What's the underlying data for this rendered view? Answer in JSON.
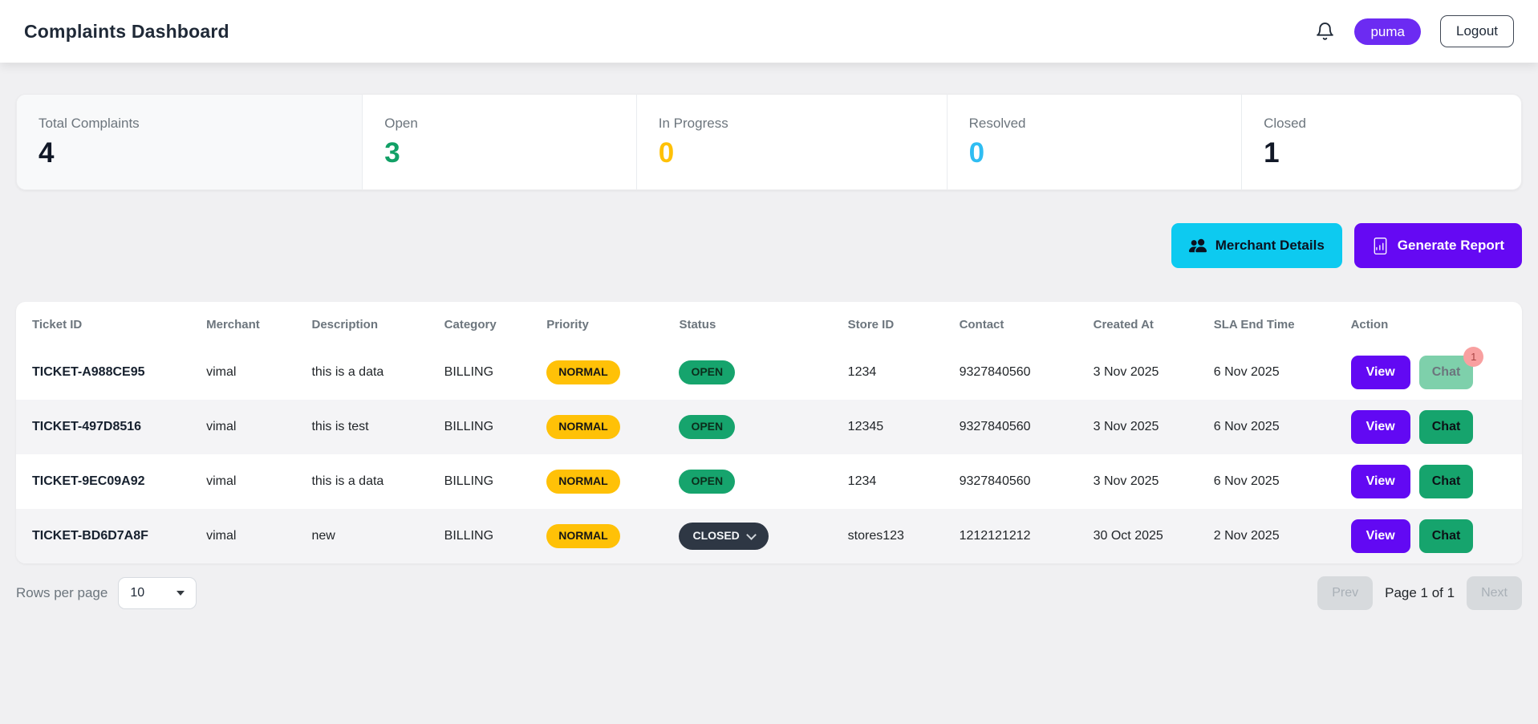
{
  "header": {
    "title": "Complaints Dashboard",
    "user_badge": "puma",
    "logout_label": "Logout"
  },
  "stats": [
    {
      "label": "Total Complaints",
      "value": "4",
      "color": "#111827"
    },
    {
      "label": "Open",
      "value": "3",
      "color": "#12a066"
    },
    {
      "label": "In Progress",
      "value": "0",
      "color": "#ffc107"
    },
    {
      "label": "Resolved",
      "value": "0",
      "color": "#2fbdf2"
    },
    {
      "label": "Closed",
      "value": "1",
      "color": "#111827"
    }
  ],
  "toolbar": {
    "merchant_details_label": "Merchant Details",
    "generate_report_label": "Generate Report",
    "merchant_details_bg": "#0dcaf0",
    "generate_report_bg": "#6509f3"
  },
  "table": {
    "columns": [
      "Ticket ID",
      "Merchant",
      "Description",
      "Category",
      "Priority",
      "Status",
      "Store ID",
      "Contact",
      "Created At",
      "SLA End Time",
      "Action"
    ],
    "badge_colors": {
      "priority_bg": "#ffc107",
      "open_bg": "#16a46d",
      "closed_bg": "#2e3744"
    },
    "rows": [
      {
        "ticket_id": "TICKET-A988CE95",
        "merchant": "vimal",
        "description": "this is a data",
        "category": "BILLING",
        "priority": "NORMAL",
        "status": "OPEN",
        "status_type": "open",
        "store_id": "1234",
        "contact": "9327840560",
        "created_at": "3 Nov 2025",
        "sla_end": "6 Nov 2025",
        "view_label": "View",
        "chat_label": "Chat",
        "chat_disabled": true,
        "chat_badge": "1"
      },
      {
        "ticket_id": "TICKET-497D8516",
        "merchant": "vimal",
        "description": "this is test",
        "category": "BILLING",
        "priority": "NORMAL",
        "status": "OPEN",
        "status_type": "open",
        "store_id": "12345",
        "contact": "9327840560",
        "created_at": "3 Nov 2025",
        "sla_end": "6 Nov 2025",
        "view_label": "View",
        "chat_label": "Chat",
        "chat_disabled": false,
        "chat_badge": null
      },
      {
        "ticket_id": "TICKET-9EC09A92",
        "merchant": "vimal",
        "description": "this is a data",
        "category": "BILLING",
        "priority": "NORMAL",
        "status": "OPEN",
        "status_type": "open",
        "store_id": "1234",
        "contact": "9327840560",
        "created_at": "3 Nov 2025",
        "sla_end": "6 Nov 2025",
        "view_label": "View",
        "chat_label": "Chat",
        "chat_disabled": false,
        "chat_badge": null
      },
      {
        "ticket_id": "TICKET-BD6D7A8F",
        "merchant": "vimal",
        "description": "new",
        "category": "BILLING",
        "priority": "NORMAL",
        "status": "CLOSED",
        "status_type": "closed",
        "store_id": "stores123",
        "contact": "1212121212",
        "created_at": "30 Oct 2025",
        "sla_end": "2 Nov 2025",
        "view_label": "View",
        "chat_label": "Chat",
        "chat_disabled": false,
        "chat_badge": null
      }
    ]
  },
  "footer": {
    "rows_per_page_label": "Rows per page",
    "rows_per_page_value": "10",
    "prev_label": "Prev",
    "page_label": "Page 1 of 1",
    "next_label": "Next"
  }
}
